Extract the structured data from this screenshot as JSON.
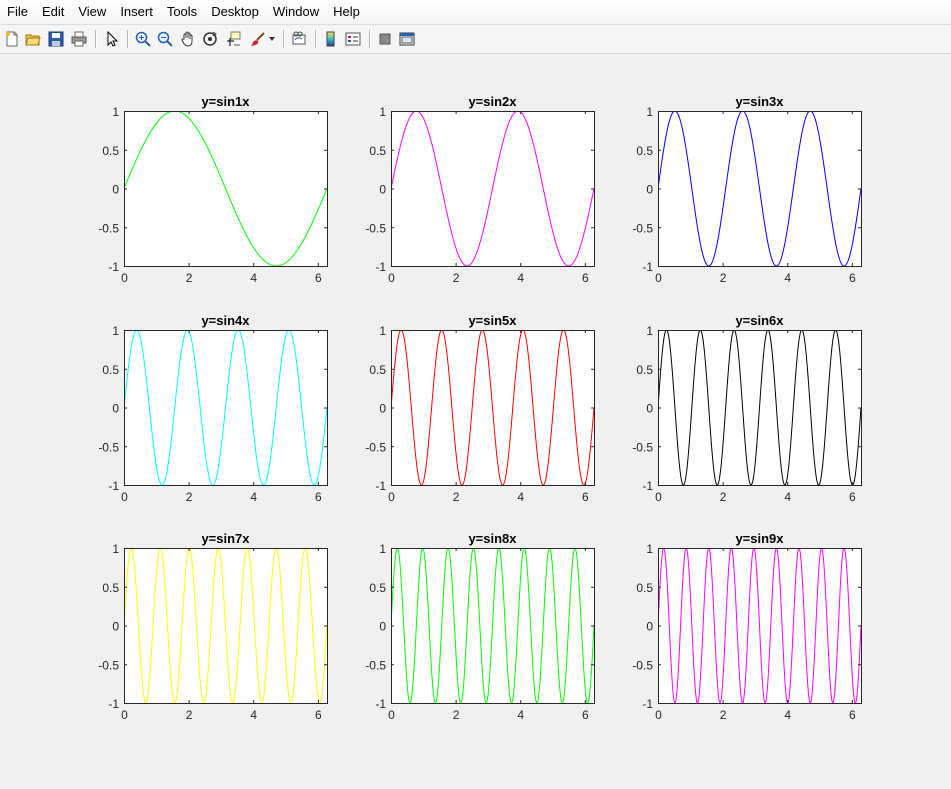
{
  "menu": [
    "File",
    "Edit",
    "View",
    "Insert",
    "Tools",
    "Desktop",
    "Window",
    "Help"
  ],
  "toolbar": {
    "icons": [
      "new-figure-icon",
      "open-file-icon",
      "save-icon",
      "print-icon",
      "edit-plot-arrow-icon",
      "zoom-in-icon",
      "zoom-out-icon",
      "pan-hand-icon",
      "rotate-3d-icon",
      "data-cursor-icon",
      "brush-icon",
      "link-plot-icon",
      "insert-colorbar-icon",
      "insert-legend-icon",
      "hide-plot-tools-icon",
      "show-plot-tools-icon"
    ]
  },
  "chart_data": [
    {
      "type": "line",
      "title": "y=sin1x",
      "frequency": 1,
      "color": "#00ff00",
      "xlim": [
        0,
        6.2832
      ],
      "ylim": [
        -1,
        1
      ],
      "xticks": [
        "0",
        "2",
        "4",
        "6"
      ],
      "yticks": [
        "1",
        "0.5",
        "0",
        "-0.5",
        "-1"
      ]
    },
    {
      "type": "line",
      "title": "y=sin2x",
      "frequency": 2,
      "color": "#ff00ff",
      "xlim": [
        0,
        6.2832
      ],
      "ylim": [
        -1,
        1
      ],
      "xticks": [
        "0",
        "2",
        "4",
        "6"
      ],
      "yticks": [
        "1",
        "0.5",
        "0",
        "-0.5",
        "-1"
      ]
    },
    {
      "type": "line",
      "title": "y=sin3x",
      "frequency": 3,
      "color": "#0000ff",
      "xlim": [
        0,
        6.2832
      ],
      "ylim": [
        -1,
        1
      ],
      "xticks": [
        "0",
        "2",
        "4",
        "6"
      ],
      "yticks": [
        "1",
        "0.5",
        "0",
        "-0.5",
        "-1"
      ]
    },
    {
      "type": "line",
      "title": "y=sin4x",
      "frequency": 4,
      "color": "#00ffff",
      "xlim": [
        0,
        6.2832
      ],
      "ylim": [
        -1,
        1
      ],
      "xticks": [
        "0",
        "2",
        "4",
        "6"
      ],
      "yticks": [
        "1",
        "0.5",
        "0",
        "-0.5",
        "-1"
      ]
    },
    {
      "type": "line",
      "title": "y=sin5x",
      "frequency": 5,
      "color": "#ff0000",
      "xlim": [
        0,
        6.2832
      ],
      "ylim": [
        -1,
        1
      ],
      "xticks": [
        "0",
        "2",
        "4",
        "6"
      ],
      "yticks": [
        "1",
        "0.5",
        "0",
        "-0.5",
        "-1"
      ]
    },
    {
      "type": "line",
      "title": "y=sin6x",
      "frequency": 6,
      "color": "#000000",
      "xlim": [
        0,
        6.2832
      ],
      "ylim": [
        -1,
        1
      ],
      "xticks": [
        "0",
        "2",
        "4",
        "6"
      ],
      "yticks": [
        "1",
        "0.5",
        "0",
        "-0.5",
        "-1"
      ]
    },
    {
      "type": "line",
      "title": "y=sin7x",
      "frequency": 7,
      "color": "#ffff00",
      "xlim": [
        0,
        6.2832
      ],
      "ylim": [
        -1,
        1
      ],
      "xticks": [
        "0",
        "2",
        "4",
        "6"
      ],
      "yticks": [
        "1",
        "0.5",
        "0",
        "-0.5",
        "-1"
      ]
    },
    {
      "type": "line",
      "title": "y=sin8x",
      "frequency": 8,
      "color": "#00ff00",
      "xlim": [
        0,
        6.2832
      ],
      "ylim": [
        -1,
        1
      ],
      "xticks": [
        "0",
        "2",
        "4",
        "6"
      ],
      "yticks": [
        "1",
        "0.5",
        "0",
        "-0.5",
        "-1"
      ]
    },
    {
      "type": "line",
      "title": "y=sin9x",
      "frequency": 9,
      "color": "#ff00ff",
      "xlim": [
        0,
        6.2832
      ],
      "ylim": [
        -1,
        1
      ],
      "xticks": [
        "0",
        "2",
        "4",
        "6"
      ],
      "yticks": [
        "1",
        "0.5",
        "0",
        "-0.5",
        "-1"
      ]
    }
  ]
}
